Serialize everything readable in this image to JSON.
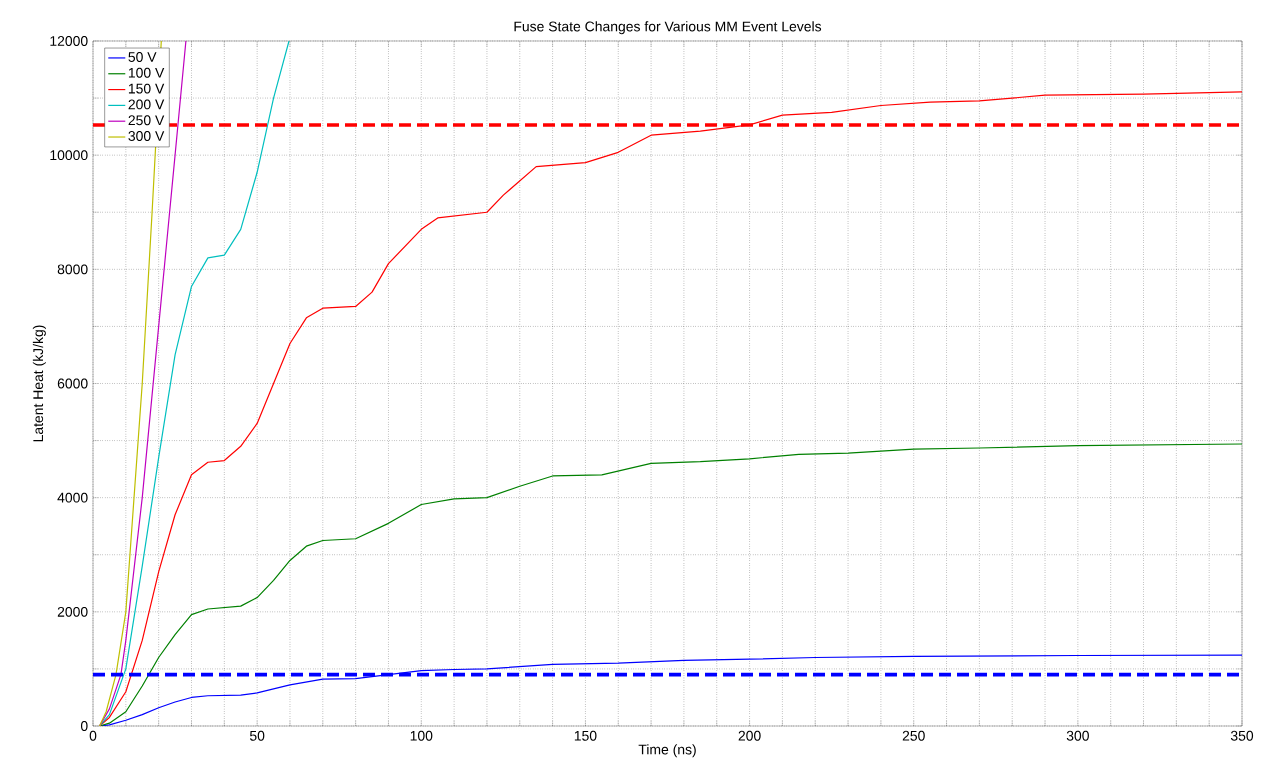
{
  "chart_data": {
    "type": "line",
    "title": "Fuse State Changes for Various MM Event Levels",
    "xlabel": "Time (ns)",
    "ylabel": "Latent Heat (kJ/kg)",
    "xlim": [
      0,
      350
    ],
    "ylim": [
      0,
      12000
    ],
    "xticks": [
      0,
      {
        "value": 10,
        "label": null
      },
      {
        "value": 20,
        "label": null
      },
      {
        "value": 30,
        "label": null
      },
      {
        "value": 40,
        "label": null
      },
      50,
      {
        "value": 60,
        "label": null
      },
      {
        "value": 70,
        "label": null
      },
      {
        "value": 80,
        "label": null
      },
      {
        "value": 90,
        "label": null
      },
      100,
      {
        "value": 110,
        "label": null
      },
      {
        "value": 120,
        "label": null
      },
      {
        "value": 130,
        "label": null
      },
      {
        "value": 140,
        "label": null
      },
      150,
      {
        "value": 160,
        "label": null
      },
      {
        "value": 170,
        "label": null
      },
      {
        "value": 180,
        "label": null
      },
      {
        "value": 190,
        "label": null
      },
      200,
      {
        "value": 210,
        "label": null
      },
      {
        "value": 220,
        "label": null
      },
      {
        "value": 230,
        "label": null
      },
      {
        "value": 240,
        "label": null
      },
      250,
      {
        "value": 260,
        "label": null
      },
      {
        "value": 270,
        "label": null
      },
      {
        "value": 280,
        "label": null
      },
      {
        "value": 290,
        "label": null
      },
      300,
      {
        "value": 310,
        "label": null
      },
      {
        "value": 320,
        "label": null
      },
      {
        "value": 330,
        "label": null
      },
      {
        "value": 340,
        "label": null
      },
      350
    ],
    "yticks": [
      0,
      {
        "value": 1000,
        "label": null
      },
      2000,
      {
        "value": 3000,
        "label": null
      },
      4000,
      {
        "value": 5000,
        "label": null
      },
      6000,
      {
        "value": 7000,
        "label": null
      },
      8000,
      {
        "value": 9000,
        "label": null
      },
      10000,
      {
        "value": 11000,
        "label": null
      },
      12000
    ],
    "grid": true,
    "legend": "top left",
    "series": [
      {
        "name": "50 V",
        "color": "#0000ff",
        "x": [
          2,
          5,
          10,
          15,
          20,
          25,
          30,
          35,
          45,
          50,
          60,
          70,
          80,
          90,
          100,
          110,
          120,
          140,
          160,
          180,
          200,
          220,
          250,
          300,
          350
        ],
        "values": [
          0,
          20,
          100,
          200,
          320,
          420,
          500,
          530,
          540,
          580,
          720,
          820,
          830,
          900,
          970,
          990,
          1000,
          1080,
          1100,
          1150,
          1170,
          1200,
          1220,
          1235,
          1240
        ]
      },
      {
        "name": "100 V",
        "color": "#008000",
        "x": [
          2,
          5,
          10,
          15,
          20,
          25,
          30,
          35,
          45,
          50,
          55,
          60,
          65,
          70,
          80,
          90,
          100,
          110,
          120,
          130,
          140,
          155,
          170,
          185,
          200,
          215,
          230,
          250,
          270,
          300,
          350
        ],
        "values": [
          0,
          50,
          250,
          700,
          1200,
          1600,
          1950,
          2050,
          2100,
          2250,
          2550,
          2900,
          3150,
          3250,
          3280,
          3550,
          3880,
          3980,
          4000,
          4200,
          4380,
          4400,
          4600,
          4630,
          4680,
          4760,
          4780,
          4850,
          4870,
          4910,
          4940
        ]
      },
      {
        "name": "150 V",
        "color": "#ff0000",
        "x": [
          2,
          5,
          10,
          15,
          20,
          25,
          30,
          35,
          40,
          45,
          50,
          55,
          60,
          65,
          70,
          80,
          85,
          90,
          100,
          105,
          120,
          125,
          135,
          150,
          160,
          170,
          185,
          200,
          210,
          225,
          240,
          255,
          270,
          290,
          320,
          350
        ],
        "values": [
          0,
          150,
          600,
          1500,
          2700,
          3700,
          4400,
          4620,
          4650,
          4900,
          5300,
          6000,
          6700,
          7150,
          7320,
          7350,
          7600,
          8100,
          8700,
          8900,
          9000,
          9300,
          9800,
          9870,
          10050,
          10350,
          10420,
          10530,
          10700,
          10750,
          10870,
          10930,
          10950,
          11050,
          11070,
          11110
        ]
      },
      {
        "name": "200 V",
        "color": "#00bfbf",
        "x": [
          2,
          5,
          10,
          15,
          20,
          25,
          30,
          35,
          40,
          45,
          50,
          55,
          59.7
        ],
        "values": [
          0,
          200,
          1000,
          2800,
          4700,
          6500,
          7700,
          8200,
          8250,
          8700,
          9700,
          11000,
          12000
        ]
      },
      {
        "name": "250 V",
        "color": "#bf00bf",
        "x": [
          2,
          5,
          8.5,
          10,
          15,
          20,
          25,
          28.3
        ],
        "values": [
          0,
          300,
          900,
          1500,
          4000,
          7000,
          10000,
          12000
        ]
      },
      {
        "name": "300 V",
        "color": "#bfbf00",
        "x": [
          2,
          4,
          7,
          10,
          15,
          18,
          20.8
        ],
        "values": [
          0,
          250,
          900,
          2000,
          6000,
          9000,
          12000
        ]
      }
    ],
    "ref_lines": [
      {
        "axis": "y",
        "value": 10530,
        "color": "#ff0000",
        "line_style": "dashed"
      },
      {
        "axis": "y",
        "value": 900,
        "color": "#0000ff",
        "line_style": "dashed"
      }
    ]
  }
}
